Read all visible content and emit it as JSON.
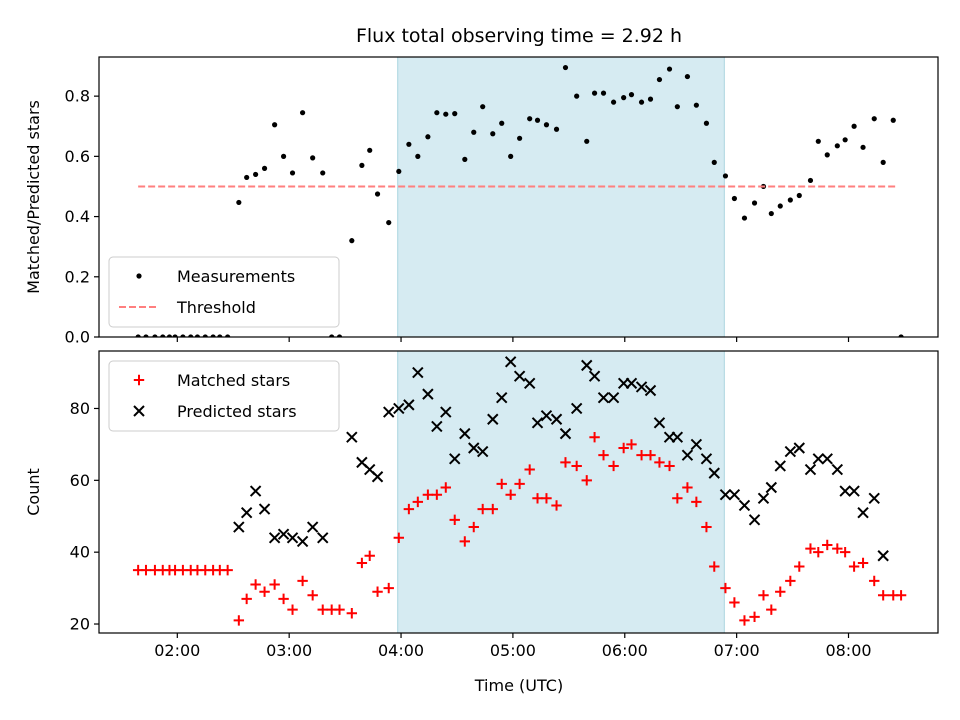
{
  "chart_data": {
    "type": "scatter",
    "title": "Flux total observing time = 2.92 h",
    "xlabel": "Time (UTC)",
    "x_unit": "hours UTC",
    "xlim": [
      1.3,
      8.8
    ],
    "xticks": [
      2,
      3,
      4,
      5,
      6,
      7,
      8
    ],
    "xtick_labels": [
      "02:00",
      "03:00",
      "04:00",
      "05:00",
      "06:00",
      "07:00",
      "08:00"
    ],
    "shaded_window": {
      "x_start": 3.97,
      "x_end": 6.89,
      "color": "#add8e6"
    },
    "colors": {
      "measurement": "#000000",
      "threshold": "#ff7f7f",
      "matched": "#ff0000",
      "predicted": "#000000",
      "shade": "#add8e6"
    },
    "panels": [
      {
        "ylabel": "Matched/Predicted stars",
        "ylim": [
          0,
          0.93
        ],
        "yticks": [
          0.0,
          0.2,
          0.4,
          0.6,
          0.8
        ],
        "ytick_labels": [
          "0.0",
          "0.2",
          "0.4",
          "0.6",
          "0.8"
        ],
        "legend_position": "lower-left",
        "series": [
          {
            "name": "Measurements",
            "kind": "dot",
            "x": [
              1.65,
              1.72,
              1.8,
              1.87,
              1.93,
              1.98,
              2.05,
              2.12,
              2.18,
              2.25,
              2.32,
              2.38,
              2.45,
              2.55,
              2.62,
              2.7,
              2.78,
              2.87,
              2.95,
              3.03,
              3.12,
              3.21,
              3.3,
              3.38,
              3.45,
              3.56,
              3.65,
              3.72,
              3.79,
              3.89,
              3.98,
              4.07,
              4.15,
              4.24,
              4.32,
              4.4,
              4.48,
              4.57,
              4.65,
              4.73,
              4.82,
              4.9,
              4.98,
              5.06,
              5.15,
              5.22,
              5.3,
              5.39,
              5.47,
              5.57,
              5.66,
              5.73,
              5.81,
              5.9,
              5.99,
              6.06,
              6.15,
              6.23,
              6.31,
              6.4,
              6.47,
              6.56,
              6.64,
              6.73,
              6.8,
              6.9,
              6.98,
              7.07,
              7.16,
              7.24,
              7.31,
              7.39,
              7.48,
              7.56,
              7.66,
              7.73,
              7.81,
              7.9,
              7.97,
              8.05,
              8.13,
              8.23,
              8.31,
              8.4,
              8.47
            ],
            "y": [
              0,
              0,
              0,
              0,
              0,
              0,
              0,
              0,
              0,
              0,
              0,
              0,
              0,
              0.447,
              0.53,
              0.54,
              0.56,
              0.705,
              0.6,
              0.545,
              0.745,
              0.595,
              0.545,
              0,
              0,
              0.32,
              0.57,
              0.62,
              0.475,
              0.38,
              0.55,
              0.64,
              0.6,
              0.665,
              0.745,
              0.74,
              0.742,
              0.59,
              0.68,
              0.765,
              0.675,
              0.71,
              0.6,
              0.66,
              0.725,
              0.72,
              0.705,
              0.69,
              0.895,
              0.8,
              0.65,
              0.81,
              0.81,
              0.78,
              0.795,
              0.805,
              0.78,
              0.79,
              0.855,
              0.89,
              0.765,
              0.865,
              0.77,
              0.71,
              0.58,
              0.535,
              0.46,
              0.395,
              0.445,
              0.5,
              0.41,
              0.435,
              0.455,
              0.47,
              0.52,
              0.65,
              0.605,
              0.635,
              0.655,
              0.7,
              0.63,
              0.725,
              0.58,
              0.72,
              0
            ]
          },
          {
            "name": "Threshold",
            "kind": "dashed-line",
            "x": [
              1.65,
              8.43
            ],
            "y": [
              0.5,
              0.5
            ]
          }
        ]
      },
      {
        "ylabel": "Count",
        "ylim": [
          17.5,
          96
        ],
        "yticks": [
          20,
          40,
          60,
          80
        ],
        "ytick_labels": [
          "20",
          "40",
          "60",
          "80"
        ],
        "legend_position": "upper-left",
        "series": [
          {
            "name": "Matched stars",
            "kind": "plus",
            "x": [
              1.65,
              1.72,
              1.8,
              1.87,
              1.93,
              1.98,
              2.05,
              2.12,
              2.18,
              2.25,
              2.32,
              2.38,
              2.45,
              2.55,
              2.62,
              2.7,
              2.78,
              2.87,
              2.95,
              3.03,
              3.12,
              3.21,
              3.3,
              3.38,
              3.45,
              3.56,
              3.65,
              3.72,
              3.79,
              3.89,
              3.98,
              4.07,
              4.15,
              4.24,
              4.32,
              4.4,
              4.48,
              4.57,
              4.65,
              4.73,
              4.82,
              4.9,
              4.98,
              5.06,
              5.15,
              5.22,
              5.3,
              5.39,
              5.47,
              5.57,
              5.66,
              5.73,
              5.81,
              5.9,
              5.99,
              6.06,
              6.15,
              6.23,
              6.31,
              6.4,
              6.47,
              6.56,
              6.64,
              6.73,
              6.8,
              6.9,
              6.98,
              7.07,
              7.16,
              7.24,
              7.31,
              7.39,
              7.48,
              7.56,
              7.66,
              7.73,
              7.81,
              7.9,
              7.97,
              8.05,
              8.13,
              8.23,
              8.31,
              8.4,
              8.47
            ],
            "y": [
              35,
              35,
              35,
              35,
              35,
              35,
              35,
              35,
              35,
              35,
              35,
              35,
              35,
              21,
              27,
              31,
              29,
              31,
              27,
              24,
              32,
              28,
              24,
              24,
              24,
              23,
              37,
              39,
              29,
              30,
              44,
              52,
              54,
              56,
              56,
              58,
              49,
              43,
              47,
              52,
              52,
              59,
              56,
              59,
              63,
              55,
              55,
              53,
              65,
              64,
              60,
              72,
              67,
              64,
              69,
              70,
              67,
              67,
              65,
              64,
              55,
              58,
              54,
              47,
              36,
              30,
              26,
              21,
              22,
              28,
              24,
              29,
              32,
              36,
              41,
              40,
              42,
              41,
              40,
              36,
              37,
              32,
              28,
              28,
              28
            ]
          },
          {
            "name": "Predicted stars",
            "kind": "x",
            "x": [
              2.55,
              2.62,
              2.7,
              2.78,
              2.87,
              2.95,
              3.03,
              3.12,
              3.21,
              3.3,
              3.56,
              3.65,
              3.72,
              3.79,
              3.89,
              3.98,
              4.07,
              4.15,
              4.24,
              4.32,
              4.4,
              4.48,
              4.57,
              4.65,
              4.73,
              4.82,
              4.9,
              4.98,
              5.06,
              5.15,
              5.22,
              5.3,
              5.39,
              5.47,
              5.57,
              5.66,
              5.73,
              5.81,
              5.9,
              5.99,
              6.06,
              6.15,
              6.23,
              6.31,
              6.4,
              6.47,
              6.56,
              6.64,
              6.73,
              6.8,
              6.9,
              6.98,
              7.07,
              7.16,
              7.24,
              7.31,
              7.39,
              7.48,
              7.56,
              7.66,
              7.73,
              7.81,
              7.9,
              7.97,
              8.05,
              8.13,
              8.23,
              8.31
            ],
            "y": [
              47,
              51,
              57,
              52,
              44,
              45,
              44,
              43,
              47,
              44,
              72,
              65,
              63,
              61,
              79,
              80,
              81,
              90,
              84,
              75,
              79,
              66,
              73,
              69,
              68,
              77,
              83,
              93,
              89,
              87,
              76,
              78,
              77,
              73,
              80,
              92,
              89,
              83,
              83,
              87,
              87,
              86,
              85,
              76,
              72,
              72,
              67,
              70,
              66,
              62,
              56,
              56,
              53,
              49,
              55,
              58,
              64,
              68,
              69,
              63,
              66,
              66,
              63,
              57,
              57,
              51,
              55,
              39
            ]
          }
        ]
      }
    ]
  }
}
